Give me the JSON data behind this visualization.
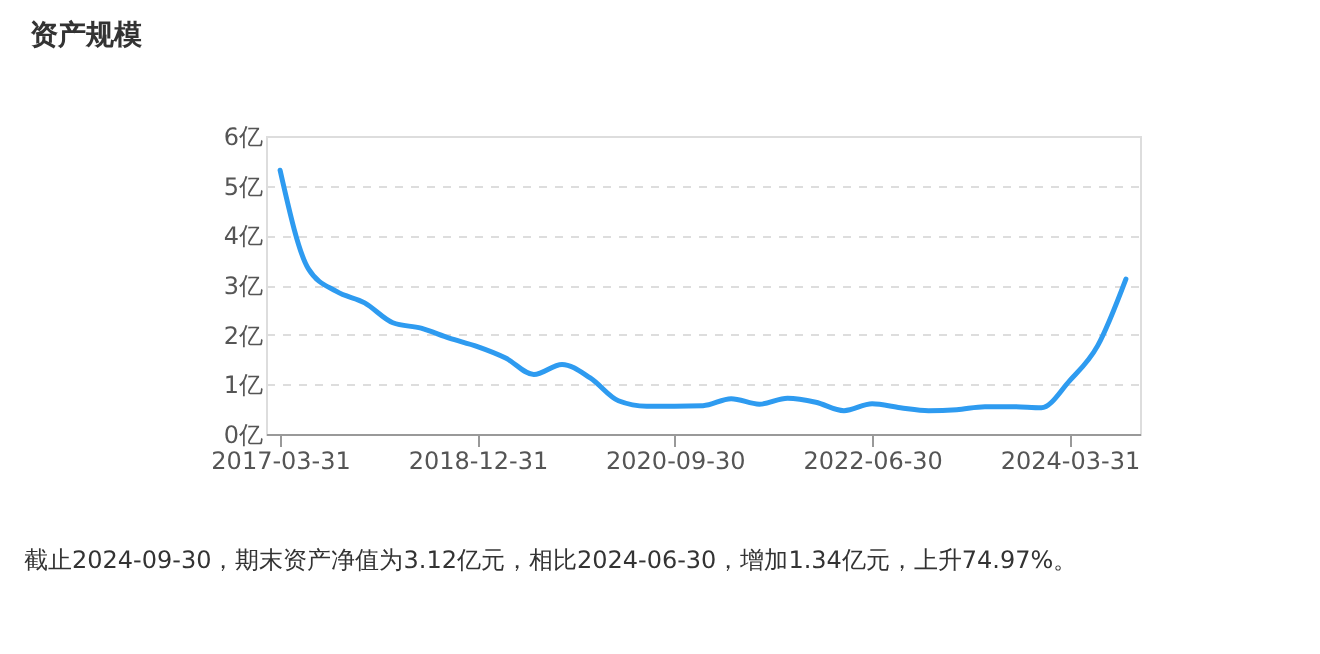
{
  "chart_data": {
    "type": "line",
    "title": "资产规模",
    "categories": [
      "2017-03-31",
      null,
      null,
      null,
      null,
      null,
      null,
      "2018-12-31",
      null,
      null,
      null,
      null,
      null,
      null,
      "2020-09-30",
      null,
      null,
      null,
      null,
      null,
      null,
      "2022-06-30",
      null,
      null,
      null,
      null,
      null,
      null,
      "2024-03-31",
      null,
      null
    ],
    "series": [
      {
        "color": "#2e9bf0",
        "values": [
          5.31,
          3.33,
          2.87,
          2.64,
          2.24,
          2.13,
          1.93,
          1.76,
          1.53,
          1.2,
          1.4,
          1.13,
          0.67,
          0.56,
          0.56,
          0.57,
          0.71,
          0.6,
          0.72,
          0.64,
          0.47,
          0.61,
          0.53,
          0.47,
          0.49,
          0.55,
          0.55,
          0.53,
          1.07,
          1.78,
          3.12
        ]
      }
    ],
    "ylim": [
      0,
      6
    ],
    "yticks": [
      {
        "value": 0,
        "label": "0亿"
      },
      {
        "value": 1,
        "label": "1亿"
      },
      {
        "value": 2,
        "label": "2亿"
      },
      {
        "value": 3,
        "label": "3亿"
      },
      {
        "value": 4,
        "label": "4亿"
      },
      {
        "value": 5,
        "label": "5亿"
      },
      {
        "value": 6,
        "label": "6亿"
      }
    ],
    "grid": "y",
    "marker": "none",
    "line_style": "solid",
    "annotations": [
      "截止2024-09-30，期末资产净值为3.12亿元，相比2024-06-30，增加1.34亿元，上升74.97%。"
    ]
  }
}
